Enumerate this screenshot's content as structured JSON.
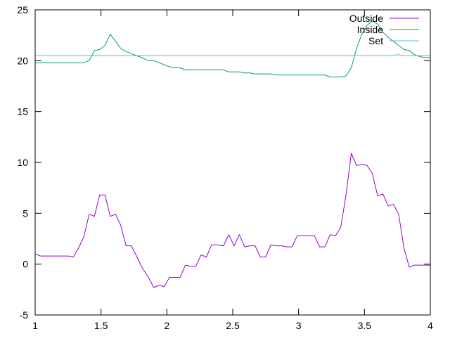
{
  "chart_data": {
    "type": "line",
    "xlim": [
      1,
      4
    ],
    "ylim": [
      -5,
      25
    ],
    "xticks": [
      1,
      1.5,
      2,
      2.5,
      3,
      3.5,
      4
    ],
    "yticks": [
      -5,
      0,
      5,
      10,
      15,
      20,
      25
    ],
    "xtick_labels": [
      "1",
      "1.5",
      "2",
      "2.5",
      "3",
      "3.5",
      "4"
    ],
    "ytick_labels": [
      "-5",
      "0",
      "5",
      "10",
      "15",
      "20",
      "25"
    ],
    "grid": false,
    "legend_position": "top-right",
    "series": [
      {
        "name": "Outside",
        "color": "#9400d3",
        "x": [
          1.0,
          1.04,
          1.08,
          1.12,
          1.16,
          1.2,
          1.25,
          1.29,
          1.33,
          1.37,
          1.41,
          1.45,
          1.49,
          1.53,
          1.57,
          1.61,
          1.65,
          1.69,
          1.73,
          1.77,
          1.81,
          1.86,
          1.9,
          1.94,
          1.98,
          2.02,
          2.06,
          2.1,
          2.14,
          2.18,
          2.22,
          2.26,
          2.3,
          2.34,
          2.38,
          2.43,
          2.47,
          2.51,
          2.55,
          2.59,
          2.63,
          2.67,
          2.71,
          2.75,
          2.79,
          2.83,
          2.87,
          2.91,
          2.95,
          2.99,
          3.04,
          3.08,
          3.12,
          3.16,
          3.2,
          3.24,
          3.28,
          3.32,
          3.36,
          3.4,
          3.44,
          3.48,
          3.52,
          3.56,
          3.6,
          3.64,
          3.68,
          3.72,
          3.76,
          3.8,
          3.84,
          3.88,
          3.92,
          3.96,
          4.0
        ],
        "y": [
          1.0,
          0.8,
          0.8,
          0.8,
          0.8,
          0.8,
          0.8,
          0.7,
          1.6,
          2.7,
          4.9,
          4.7,
          6.8,
          6.8,
          4.7,
          4.9,
          3.8,
          1.8,
          1.8,
          0.8,
          -0.3,
          -1.3,
          -2.3,
          -2.1,
          -2.2,
          -1.3,
          -1.3,
          -1.3,
          -0.1,
          -0.2,
          -0.2,
          0.9,
          0.7,
          1.9,
          1.9,
          1.8,
          2.9,
          1.8,
          2.9,
          1.7,
          1.8,
          1.8,
          0.7,
          0.7,
          1.9,
          1.8,
          1.8,
          1.7,
          1.7,
          2.8,
          2.8,
          2.8,
          2.8,
          1.7,
          1.7,
          2.9,
          2.8,
          3.6,
          6.8,
          10.9,
          9.7,
          9.8,
          9.7,
          8.9,
          6.7,
          6.9,
          5.7,
          5.9,
          4.9,
          1.6,
          -0.3,
          -0.1,
          -0.1,
          -0.1,
          -0.1
        ]
      },
      {
        "name": "Inside",
        "color": "#009e73",
        "x": [
          1.0,
          1.04,
          1.08,
          1.12,
          1.16,
          1.2,
          1.25,
          1.29,
          1.33,
          1.37,
          1.41,
          1.45,
          1.49,
          1.53,
          1.57,
          1.61,
          1.65,
          1.69,
          1.73,
          1.77,
          1.81,
          1.86,
          1.9,
          1.94,
          1.98,
          2.02,
          2.06,
          2.1,
          2.14,
          2.18,
          2.22,
          2.26,
          2.3,
          2.34,
          2.38,
          2.43,
          2.47,
          2.51,
          2.55,
          2.59,
          2.63,
          2.67,
          2.71,
          2.75,
          2.79,
          2.83,
          2.87,
          2.91,
          2.95,
          2.99,
          3.04,
          3.08,
          3.12,
          3.16,
          3.2,
          3.24,
          3.28,
          3.32,
          3.36,
          3.4,
          3.44,
          3.48,
          3.52,
          3.56,
          3.6,
          3.64,
          3.68,
          3.72,
          3.76,
          3.8,
          3.84,
          3.88,
          3.92,
          3.96,
          4.0
        ],
        "y": [
          19.8,
          19.8,
          19.8,
          19.8,
          19.8,
          19.8,
          19.8,
          19.8,
          19.8,
          19.8,
          20.0,
          21.0,
          21.1,
          21.5,
          22.6,
          21.9,
          21.2,
          20.9,
          20.7,
          20.5,
          20.3,
          20.0,
          20.0,
          19.8,
          19.6,
          19.4,
          19.3,
          19.3,
          19.1,
          19.1,
          19.1,
          19.1,
          19.1,
          19.1,
          19.1,
          19.1,
          18.9,
          18.9,
          18.9,
          18.8,
          18.8,
          18.7,
          18.7,
          18.7,
          18.7,
          18.6,
          18.6,
          18.6,
          18.6,
          18.6,
          18.6,
          18.6,
          18.6,
          18.6,
          18.6,
          18.4,
          18.4,
          18.4,
          18.5,
          19.3,
          21.2,
          22.6,
          23.5,
          23.9,
          23.6,
          22.8,
          22.3,
          21.9,
          21.5,
          21.1,
          21.0,
          20.6,
          20.4,
          20.3,
          20.3
        ]
      },
      {
        "name": "Set",
        "color": "#56b4e9",
        "x": [
          1.0,
          1.5,
          2.0,
          2.5,
          3.0,
          3.5,
          3.7,
          3.75,
          3.8,
          3.85,
          3.9,
          4.0
        ],
        "y": [
          20.5,
          20.5,
          20.5,
          20.5,
          20.5,
          20.5,
          20.5,
          20.6,
          20.5,
          20.5,
          20.5,
          20.5
        ]
      }
    ]
  }
}
